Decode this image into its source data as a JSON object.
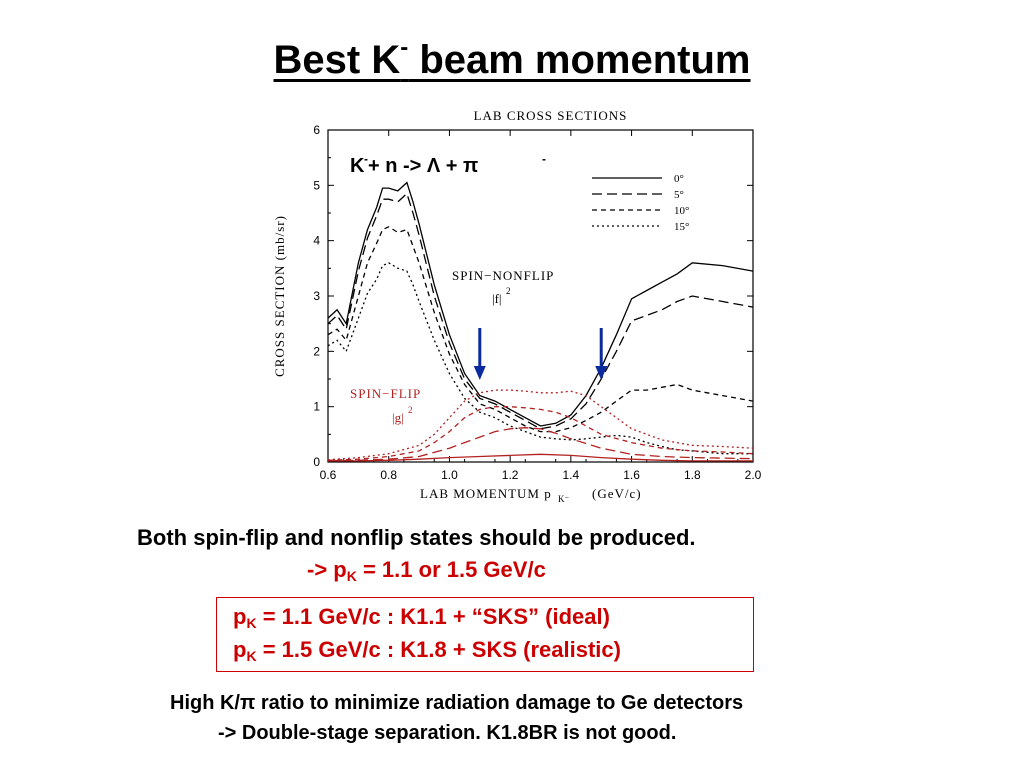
{
  "slide": {
    "title_pre": "Best K",
    "title_sup": "-",
    "title_post": " beam momentum",
    "line1": "Both spin-flip and nonflip states should be produced.",
    "line2_pre": "->  p",
    "line2_sub": "K",
    "line2_post": " = 1.1  or 1.5 GeV/c",
    "box_line1_pre": "p",
    "box_line1_sub": "K",
    "box_line1_post": " = 1.1 GeV/c :  K1.1 + “SKS” (ideal)",
    "box_line2_pre": "p",
    "box_line2_sub": "K",
    "box_line2_post": " = 1.5 GeV/c :  K1.8 + SKS (realistic)",
    "foot1": "High K/π ratio to minimize radiation damage to Ge detectors",
    "foot2": "-> Double-stage separation. K1.8BR is not good."
  },
  "colors": {
    "text": "#000000",
    "accent_red": "#cc0000",
    "arrow_blue": "#0a2a9e",
    "spinflip_red": "#b22222"
  },
  "chart_data": {
    "type": "line",
    "title": "LAB CROSS SECTIONS",
    "xlabel": "LAB MOMENTUM p",
    "xlabel_sub": "K⁻",
    "xlabel_unit": "(GeV/c)",
    "ylabel": "CROSS SECTION (mb/sr)",
    "xlim": [
      0.6,
      2.0
    ],
    "ylim": [
      0,
      6
    ],
    "xticks": [
      "0.6",
      "0.8",
      "1.0",
      "1.2",
      "1.4",
      "1.6",
      "1.8",
      "2.0"
    ],
    "yticks": [
      "0",
      "1",
      "2",
      "3",
      "4",
      "5",
      "6"
    ],
    "reaction": {
      "k_main": "K",
      "k_sup": "-",
      "mid": " + n -> Λ + π",
      "pi_sup": "-"
    },
    "label_nonflip": "SPIN−NONFLIP",
    "label_nonflip_f": "|f|",
    "label_flip": "SPIN−FLIP",
    "label_flip_g": "|g|",
    "label_sq": "2",
    "legend": [
      "0°",
      "5°",
      "10°",
      "15°"
    ],
    "arrows_x": [
      1.1,
      1.5
    ],
    "series": [
      {
        "name": "0°",
        "dash": "",
        "x": [
          0.6,
          0.63,
          0.66,
          0.7,
          0.73,
          0.76,
          0.78,
          0.8,
          0.83,
          0.86,
          0.88,
          0.9,
          0.95,
          1.0,
          1.05,
          1.1,
          1.15,
          1.2,
          1.25,
          1.3,
          1.35,
          1.4,
          1.45,
          1.5,
          1.55,
          1.6,
          1.65,
          1.7,
          1.75,
          1.8,
          1.9,
          2.0
        ],
        "y": [
          2.6,
          2.75,
          2.5,
          3.6,
          4.2,
          4.6,
          4.95,
          4.95,
          4.9,
          5.05,
          4.7,
          4.3,
          3.2,
          2.3,
          1.6,
          1.2,
          1.1,
          0.95,
          0.8,
          0.65,
          0.7,
          0.85,
          1.2,
          1.7,
          2.3,
          2.95,
          3.1,
          3.25,
          3.4,
          3.6,
          3.55,
          3.45
        ]
      },
      {
        "name": "5°",
        "dash": "10,5",
        "x": [
          0.6,
          0.63,
          0.66,
          0.7,
          0.73,
          0.76,
          0.78,
          0.8,
          0.83,
          0.86,
          0.88,
          0.9,
          0.95,
          1.0,
          1.05,
          1.1,
          1.15,
          1.2,
          1.25,
          1.3,
          1.35,
          1.4,
          1.45,
          1.5,
          1.55,
          1.6,
          1.65,
          1.7,
          1.75,
          1.8,
          1.9,
          2.0
        ],
        "y": [
          2.5,
          2.65,
          2.4,
          3.45,
          4.05,
          4.45,
          4.75,
          4.75,
          4.7,
          4.85,
          4.5,
          4.1,
          3.0,
          2.15,
          1.5,
          1.15,
          1.05,
          0.9,
          0.75,
          0.6,
          0.65,
          0.78,
          1.05,
          1.5,
          2.0,
          2.55,
          2.65,
          2.75,
          2.9,
          3.0,
          2.9,
          2.8
        ]
      },
      {
        "name": "10°",
        "dash": "5,4",
        "x": [
          0.6,
          0.63,
          0.66,
          0.7,
          0.73,
          0.76,
          0.78,
          0.8,
          0.83,
          0.86,
          0.88,
          0.9,
          0.95,
          1.0,
          1.05,
          1.1,
          1.15,
          1.2,
          1.25,
          1.3,
          1.35,
          1.4,
          1.45,
          1.5,
          1.55,
          1.6,
          1.65,
          1.7,
          1.75,
          1.8,
          1.9,
          2.0
        ],
        "y": [
          2.3,
          2.4,
          2.2,
          3.0,
          3.6,
          3.95,
          4.2,
          4.25,
          4.15,
          4.2,
          3.9,
          3.6,
          2.7,
          1.95,
          1.4,
          1.05,
          0.95,
          0.8,
          0.65,
          0.55,
          0.55,
          0.62,
          0.75,
          0.9,
          1.1,
          1.3,
          1.3,
          1.35,
          1.4,
          1.3,
          1.2,
          1.1
        ]
      },
      {
        "name": "15°",
        "dash": "2,3",
        "x": [
          0.6,
          0.63,
          0.66,
          0.7,
          0.73,
          0.76,
          0.78,
          0.8,
          0.83,
          0.86,
          0.88,
          0.9,
          0.95,
          1.0,
          1.05,
          1.1,
          1.15,
          1.2,
          1.25,
          1.3,
          1.35,
          1.4,
          1.45,
          1.5,
          1.55,
          1.6,
          1.65,
          1.7,
          1.75,
          1.8,
          1.9,
          2.0
        ],
        "y": [
          2.1,
          2.2,
          2.0,
          2.6,
          3.05,
          3.3,
          3.55,
          3.6,
          3.5,
          3.45,
          3.2,
          2.9,
          2.2,
          1.6,
          1.15,
          0.9,
          0.8,
          0.65,
          0.55,
          0.45,
          0.42,
          0.4,
          0.42,
          0.45,
          0.48,
          0.45,
          0.35,
          0.28,
          0.22,
          0.2,
          0.15,
          0.15
        ]
      },
      {
        "name": "spin-flip 0°",
        "dash": "",
        "color": "#b22222",
        "x": [
          0.6,
          0.7,
          0.8,
          0.9,
          1.0,
          1.1,
          1.2,
          1.3,
          1.4,
          1.5,
          1.6,
          1.7,
          1.8,
          1.9,
          2.0
        ],
        "y": [
          0.02,
          0.02,
          0.03,
          0.05,
          0.08,
          0.1,
          0.12,
          0.14,
          0.12,
          0.08,
          0.05,
          0.03,
          0.02,
          0.02,
          0.02
        ]
      },
      {
        "name": "spin-flip 5°",
        "dash": "10,5",
        "color": "#b22222",
        "x": [
          0.6,
          0.7,
          0.8,
          0.9,
          1.0,
          1.05,
          1.1,
          1.15,
          1.2,
          1.25,
          1.3,
          1.35,
          1.4,
          1.5,
          1.6,
          1.7,
          1.8,
          1.9,
          2.0
        ],
        "y": [
          0.02,
          0.03,
          0.05,
          0.1,
          0.25,
          0.35,
          0.45,
          0.55,
          0.6,
          0.62,
          0.6,
          0.52,
          0.42,
          0.25,
          0.14,
          0.1,
          0.08,
          0.07,
          0.06
        ]
      },
      {
        "name": "spin-flip 10°",
        "dash": "5,4",
        "color": "#b22222",
        "x": [
          0.6,
          0.7,
          0.8,
          0.9,
          0.95,
          1.0,
          1.05,
          1.1,
          1.15,
          1.2,
          1.25,
          1.3,
          1.35,
          1.4,
          1.45,
          1.5,
          1.6,
          1.7,
          1.8,
          1.9,
          2.0
        ],
        "y": [
          0.03,
          0.05,
          0.1,
          0.2,
          0.35,
          0.55,
          0.8,
          0.95,
          1.0,
          1.0,
          0.98,
          0.95,
          0.9,
          0.8,
          0.65,
          0.5,
          0.35,
          0.25,
          0.2,
          0.18,
          0.15
        ]
      },
      {
        "name": "spin-flip 15°",
        "dash": "2,3",
        "color": "#b22222",
        "x": [
          0.6,
          0.7,
          0.8,
          0.9,
          0.95,
          1.0,
          1.05,
          1.1,
          1.15,
          1.2,
          1.25,
          1.3,
          1.35,
          1.4,
          1.45,
          1.5,
          1.55,
          1.6,
          1.7,
          1.8,
          1.9,
          2.0
        ],
        "y": [
          0.04,
          0.08,
          0.15,
          0.3,
          0.5,
          0.8,
          1.1,
          1.25,
          1.3,
          1.3,
          1.28,
          1.25,
          1.25,
          1.28,
          1.2,
          1.0,
          0.8,
          0.6,
          0.4,
          0.3,
          0.28,
          0.25
        ]
      }
    ]
  }
}
